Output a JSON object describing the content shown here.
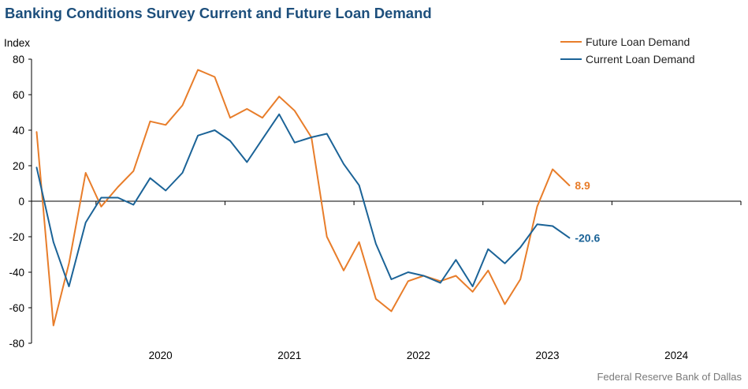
{
  "title": "Banking Conditions Survey Current and Future Loan Demand",
  "source": "Federal Reserve Bank of Dallas",
  "colors": {
    "future": "#e87d2a",
    "current": "#1b6397",
    "axis": "#000000",
    "title": "#1d4f7c"
  },
  "chart_data": {
    "type": "line",
    "ylabel": "Index",
    "ylim": [
      -80,
      80
    ],
    "yticks": [
      80,
      60,
      40,
      20,
      0,
      -20,
      -40,
      -60,
      -80
    ],
    "xlim": [
      2019.5,
      2025.0
    ],
    "xtick_labels": [
      "2020",
      "2021",
      "2022",
      "2023",
      "2024"
    ],
    "legend_position": "top-right",
    "x": [
      2019.54,
      2019.67,
      2019.79,
      2019.92,
      2020.04,
      2020.17,
      2020.29,
      2020.42,
      2020.54,
      2020.67,
      2020.79,
      2020.92,
      2021.04,
      2021.17,
      2021.29,
      2021.42,
      2021.54,
      2021.67,
      2021.79,
      2021.92,
      2022.04,
      2022.17,
      2022.29,
      2022.42,
      2022.54,
      2022.67,
      2022.79,
      2022.92,
      2023.04,
      2023.17,
      2023.29,
      2023.42,
      2023.54,
      2023.67
    ],
    "series": [
      {
        "name": "Future Loan Demand",
        "color": "#e87d2a",
        "values": [
          39,
          -70,
          -35,
          16,
          -3,
          8,
          17,
          45,
          43,
          54,
          74,
          70,
          47,
          52,
          47,
          59,
          51,
          36,
          -20,
          -39,
          -23,
          -55,
          -62,
          -45,
          -42,
          -45,
          -42,
          -51,
          -39,
          -58,
          -44,
          -3,
          18,
          8.9
        ],
        "end_label": "8.9"
      },
      {
        "name": "Current Loan Demand",
        "color": "#1b6397",
        "values": [
          19,
          -23,
          -48,
          -12,
          2,
          2,
          -2,
          13,
          6,
          16,
          37,
          40,
          34,
          22,
          35,
          49,
          33,
          36,
          38,
          21,
          9,
          -24,
          -44,
          -40,
          -42,
          -46,
          -33,
          -48,
          -27,
          -35,
          -26,
          -13,
          -14,
          -20.6
        ],
        "end_label": "-20.6"
      }
    ]
  }
}
